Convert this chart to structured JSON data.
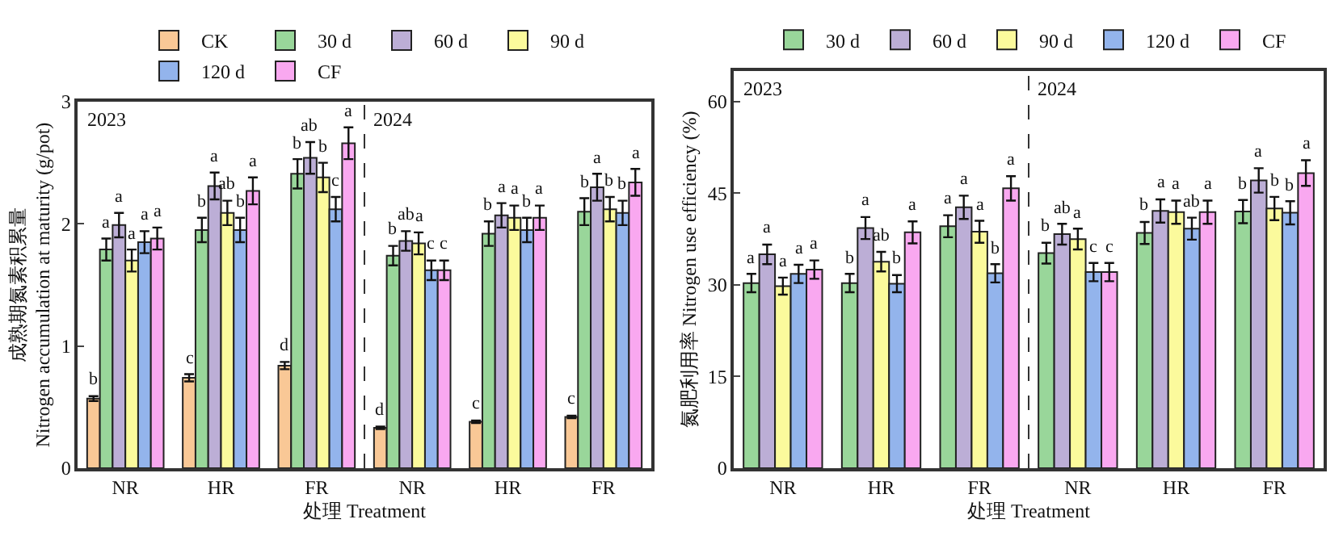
{
  "chart_data": [
    {
      "type": "bar",
      "xlabel": "处理 Treatment",
      "ylabel": "成熟期氮素积累量\nNitrogen accumulation at maturity (g/pot)",
      "categories": [
        "NR",
        "HR",
        "FR",
        "NR",
        "HR",
        "FR"
      ],
      "ylim": [
        0,
        3
      ],
      "yticks": [
        0,
        1,
        2,
        3
      ],
      "legend": "top",
      "annotations": [
        "2023",
        "2024"
      ],
      "series": [
        {
          "name": "CK",
          "color": "#f9c896",
          "values": [
            0.57,
            0.74,
            0.84,
            0.33,
            0.38,
            0.42
          ],
          "errors": [
            0.02,
            0.03,
            0.03,
            0.01,
            0.01,
            0.01
          ],
          "value_labels": [
            "b",
            "c",
            "d",
            "d",
            "c",
            "c"
          ]
        },
        {
          "name": "30 d",
          "color": "#99d69a",
          "values": [
            1.79,
            1.95,
            2.41,
            1.74,
            1.92,
            2.1
          ],
          "errors": [
            0.09,
            0.1,
            0.12,
            0.08,
            0.1,
            0.11
          ],
          "value_labels": [
            "a",
            "b",
            "b",
            "b",
            "b",
            "b"
          ]
        },
        {
          "name": "60 d",
          "color": "#bcaed6",
          "values": [
            1.99,
            2.31,
            2.54,
            1.86,
            2.07,
            2.3
          ],
          "errors": [
            0.1,
            0.11,
            0.13,
            0.08,
            0.1,
            0.11
          ],
          "value_labels": [
            "a",
            "a",
            "ab",
            "ab",
            "a",
            "a"
          ]
        },
        {
          "name": "90 d",
          "color": "#fbfa9c",
          "values": [
            1.7,
            2.09,
            2.38,
            1.84,
            2.05,
            2.12
          ],
          "errors": [
            0.09,
            0.1,
            0.12,
            0.09,
            0.1,
            0.1
          ],
          "value_labels": [
            "a",
            "ab",
            "b",
            "a",
            "a",
            "b"
          ]
        },
        {
          "name": "120 d",
          "color": "#93b4ec",
          "values": [
            1.85,
            1.95,
            2.12,
            1.62,
            1.95,
            2.09
          ],
          "errors": [
            0.09,
            0.1,
            0.1,
            0.08,
            0.1,
            0.1
          ],
          "value_labels": [
            "a",
            "b",
            "c",
            "c",
            "b",
            "b"
          ]
        },
        {
          "name": "CF",
          "color": "#f9a8f0",
          "values": [
            1.88,
            2.27,
            2.66,
            1.62,
            2.05,
            2.34
          ],
          "errors": [
            0.09,
            0.11,
            0.13,
            0.08,
            0.1,
            0.11
          ],
          "value_labels": [
            "a",
            "a",
            "a",
            "c",
            "a",
            "a"
          ]
        }
      ]
    },
    {
      "type": "bar",
      "xlabel": "处理 Treatment",
      "ylabel": "氮肥利用率 Nitrogen use efficiency (%)",
      "categories": [
        "NR",
        "HR",
        "FR",
        "NR",
        "HR",
        "FR"
      ],
      "ylim": [
        0,
        65
      ],
      "yticks": [
        0,
        15,
        30,
        45,
        60
      ],
      "legend": "top",
      "annotations": [
        "2023",
        "2024"
      ],
      "series": [
        {
          "name": "30 d",
          "color": "#99d69a",
          "values": [
            30.3,
            30.3,
            39.6,
            35.2,
            38.5,
            42.0
          ],
          "errors": [
            1.5,
            1.5,
            1.8,
            1.7,
            1.8,
            1.9
          ],
          "value_labels": [
            "a",
            "b",
            "a",
            "b",
            "b",
            "b"
          ]
        },
        {
          "name": "60 d",
          "color": "#bcaed6",
          "values": [
            35.0,
            39.3,
            42.7,
            38.3,
            42.1,
            47.1
          ],
          "errors": [
            1.6,
            1.8,
            1.9,
            1.7,
            1.9,
            2.0
          ],
          "value_labels": [
            "a",
            "a",
            "a",
            "ab",
            "a",
            "a"
          ]
        },
        {
          "name": "90 d",
          "color": "#fbfa9c",
          "values": [
            29.8,
            33.8,
            38.7,
            37.5,
            41.9,
            42.5
          ],
          "errors": [
            1.4,
            1.6,
            1.8,
            1.7,
            1.9,
            1.9
          ],
          "value_labels": [
            "a",
            "ab",
            "a",
            "a",
            "a",
            "b"
          ]
        },
        {
          "name": "120 d",
          "color": "#93b4ec",
          "values": [
            31.8,
            30.2,
            31.9,
            32.1,
            39.2,
            41.8
          ],
          "errors": [
            1.5,
            1.4,
            1.5,
            1.5,
            1.8,
            1.9
          ],
          "value_labels": [
            "a",
            "b",
            "b",
            "c",
            "ab",
            "b"
          ]
        },
        {
          "name": "CF",
          "color": "#f9a8f0",
          "values": [
            32.5,
            38.6,
            45.8,
            32.1,
            41.9,
            48.3
          ],
          "errors": [
            1.5,
            1.8,
            2.0,
            1.5,
            1.9,
            2.1
          ],
          "value_labels": [
            "a",
            "a",
            "a",
            "c",
            "a",
            "a"
          ]
        }
      ]
    }
  ]
}
